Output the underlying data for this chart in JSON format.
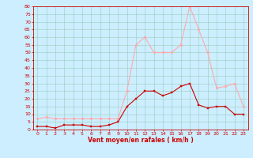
{
  "hours": [
    0,
    1,
    2,
    3,
    4,
    5,
    6,
    7,
    8,
    9,
    10,
    11,
    12,
    13,
    14,
    15,
    16,
    17,
    18,
    19,
    20,
    21,
    22,
    23
  ],
  "wind_avg": [
    2,
    2,
    1,
    3,
    3,
    3,
    2,
    2,
    3,
    5,
    15,
    20,
    25,
    25,
    22,
    24,
    28,
    30,
    16,
    14,
    15,
    15,
    10,
    10
  ],
  "wind_gust": [
    7,
    8,
    7,
    7,
    7,
    7,
    7,
    7,
    7,
    7,
    25,
    55,
    60,
    50,
    50,
    50,
    55,
    80,
    65,
    50,
    27,
    28,
    30,
    15
  ],
  "avg_color": "#cc0000",
  "gust_color": "#ffaaaa",
  "bg_color": "#cceeff",
  "grid_color": "#99ccbb",
  "xlabel": "Vent moyen/en rafales ( km/h )",
  "ylim": [
    0,
    80
  ],
  "yticks": [
    0,
    5,
    10,
    15,
    20,
    25,
    30,
    35,
    40,
    45,
    50,
    55,
    60,
    65,
    70,
    75,
    80
  ],
  "xticks": [
    0,
    1,
    2,
    3,
    4,
    5,
    6,
    7,
    8,
    9,
    10,
    11,
    12,
    13,
    14,
    15,
    16,
    17,
    18,
    19,
    20,
    21,
    22,
    23
  ]
}
